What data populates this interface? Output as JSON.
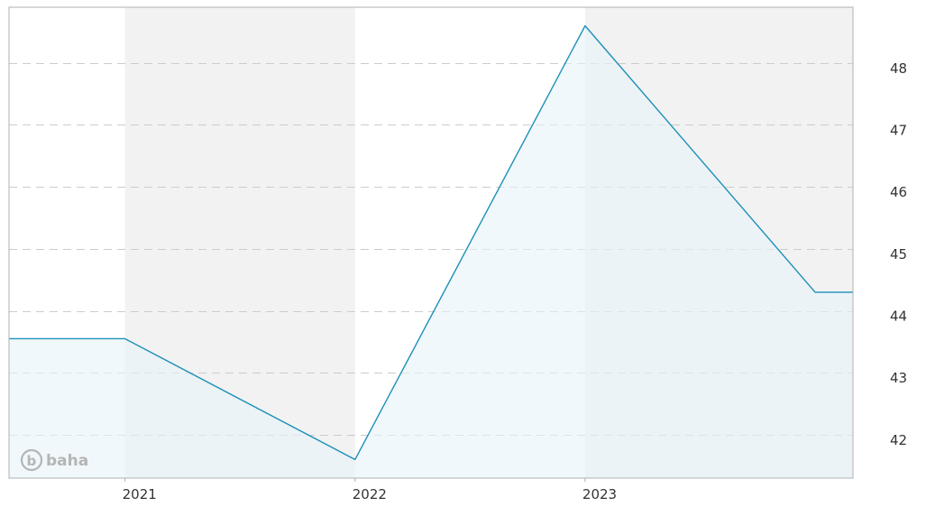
{
  "brand": {
    "watermark_initial": "b",
    "watermark_text": "baha"
  },
  "colors": {
    "line": "#1e90b8",
    "area_fill": "#e6f3f8",
    "band_fill": "#f2f2f2",
    "grid": "#cccccc",
    "frame": "#b0b0b0"
  },
  "chart_data": {
    "type": "line",
    "title": "",
    "xlabel": "",
    "ylabel": "",
    "y_axis_position": "right",
    "grid": true,
    "filled_area": true,
    "x_range": [
      "2020-07-01",
      "2024-03-01"
    ],
    "ylim": [
      41.3,
      48.9
    ],
    "x_ticks": [
      {
        "value": "2021-01-01",
        "label": "2021"
      },
      {
        "value": "2022-01-01",
        "label": "2022"
      },
      {
        "value": "2023-01-01",
        "label": "2023"
      }
    ],
    "y_ticks": [
      42,
      43,
      44,
      45,
      46,
      47,
      48
    ],
    "shaded_bands": [
      [
        "2021-01-01",
        "2022-01-01"
      ],
      [
        "2023-01-01",
        "2024-03-01"
      ]
    ],
    "series": [
      {
        "points": [
          {
            "x": "2020-07-01",
            "y": 43.55
          },
          {
            "x": "2021-01-01",
            "y": 43.55
          },
          {
            "x": "2022-01-01",
            "y": 41.6
          },
          {
            "x": "2023-01-01",
            "y": 48.6
          },
          {
            "x": "2024-01-01",
            "y": 44.3
          },
          {
            "x": "2024-03-01",
            "y": 44.3
          }
        ]
      }
    ]
  }
}
